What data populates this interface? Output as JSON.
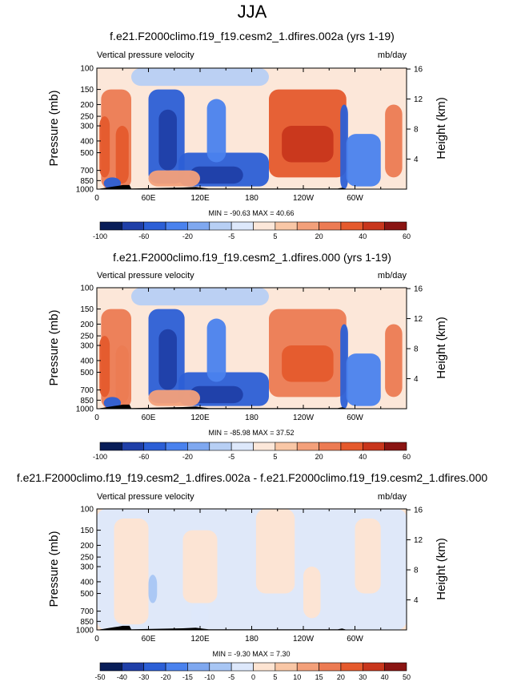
{
  "figure": {
    "main_title": "JJA",
    "colors": {
      "bwr": [
        "#081d58",
        "#1f3fa8",
        "#2c5fd6",
        "#4a82ee",
        "#7fa8f0",
        "#b7cff4",
        "#dde8fb",
        "#fce7d9",
        "#f9c7a6",
        "#f3a07a",
        "#ec7b53",
        "#e55a2d",
        "#c8361c",
        "#8a1412"
      ],
      "diff": [
        "#081d58",
        "#1f3fa8",
        "#2c5fd6",
        "#4a82ee",
        "#7fa8f0",
        "#a8c6f4",
        "#dde8fb",
        "#fde4d2",
        "#f9c7a6",
        "#f3a07a",
        "#ec7b53",
        "#e55a2d",
        "#c8361c",
        "#8a1412"
      ]
    }
  },
  "chart_data": [
    {
      "type": "heatmap",
      "title": "f.e21.F2000climo.f19_f19.cesm2_1.dfires.002a (yrs 1-19)",
      "left_string": "Vertical pressure velocity",
      "right_string": "mb/day",
      "ylabel": "Pressure (mb)",
      "ylabel_right": "Height (km)",
      "x_ticks": [
        "0",
        "60E",
        "120E",
        "180",
        "120W",
        "60W"
      ],
      "x_tick_values": [
        0,
        60,
        120,
        180,
        240,
        300
      ],
      "xlim": [
        0,
        360
      ],
      "y_ticks": [
        "100",
        "150",
        "200",
        "250",
        "300",
        "400",
        "500",
        "700",
        "850",
        "1000"
      ],
      "y_tick_values": [
        100,
        150,
        200,
        250,
        300,
        400,
        500,
        700,
        850,
        1000
      ],
      "ylim": [
        1000,
        100
      ],
      "y_scale": "log",
      "height_ticks": [
        "16",
        "12",
        "8",
        "4"
      ],
      "height_tick_values": [
        16,
        12,
        8,
        4
      ],
      "min_max": "MIN = -90.63  MAX = 40.66",
      "colorbar_labels": [
        "-100",
        "-60",
        "-20",
        "-5",
        "5",
        "20",
        "40",
        "60"
      ],
      "colorbar_levels": [
        -100,
        -80,
        -60,
        -40,
        -20,
        -10,
        -5,
        0,
        5,
        10,
        20,
        30,
        40,
        50,
        60
      ],
      "palette": "bwr",
      "features": [
        {
          "x": [
            5,
            40
          ],
          "p": [
            150,
            1000
          ],
          "v": 25
        },
        {
          "x": [
            3,
            15
          ],
          "p": [
            250,
            800
          ],
          "v": 35
        },
        {
          "x": [
            22,
            37
          ],
          "p": [
            300,
            900
          ],
          "v": 30
        },
        {
          "x": [
            8,
            28
          ],
          "p": [
            800,
            1000
          ],
          "v": -50
        },
        {
          "x": [
            60,
            102
          ],
          "p": [
            150,
            900
          ],
          "v": -45
        },
        {
          "x": [
            72,
            93
          ],
          "p": [
            220,
            700
          ],
          "v": -80
        },
        {
          "x": [
            95,
            200
          ],
          "p": [
            500,
            950
          ],
          "v": -45
        },
        {
          "x": [
            108,
            170
          ],
          "p": [
            650,
            900
          ],
          "v": -70
        },
        {
          "x": [
            128,
            150
          ],
          "p": [
            180,
            600
          ],
          "v": -40
        },
        {
          "x": [
            200,
            290
          ],
          "p": [
            150,
            800
          ],
          "v": 30
        },
        {
          "x": [
            215,
            275
          ],
          "p": [
            300,
            600
          ],
          "v": 40
        },
        {
          "x": [
            283,
            292
          ],
          "p": [
            200,
            1000
          ],
          "v": -55
        },
        {
          "x": [
            290,
            330
          ],
          "p": [
            350,
            950
          ],
          "v": -40
        },
        {
          "x": [
            335,
            355
          ],
          "p": [
            200,
            800
          ],
          "v": 25
        },
        {
          "x": [
            40,
            200
          ],
          "p": [
            100,
            140
          ],
          "v": -6
        },
        {
          "x": [
            60,
            120
          ],
          "p": [
            700,
            950
          ],
          "v": 15
        }
      ],
      "terrain": [
        [
          12,
          970
        ],
        [
          20,
          950
        ],
        [
          25,
          940
        ],
        [
          30,
          925
        ],
        [
          38,
          925
        ],
        [
          40,
          990
        ],
        [
          100,
          970
        ],
        [
          115,
          960
        ],
        [
          130,
          990
        ],
        [
          280,
          990
        ],
        [
          285,
          975
        ],
        [
          290,
          995
        ]
      ]
    },
    {
      "type": "heatmap",
      "title": "f.e21.F2000climo.f19_f19.cesm2_1.dfires.000 (yrs 1-19)",
      "left_string": "Vertical pressure velocity",
      "right_string": "mb/day",
      "ylabel": "Pressure (mb)",
      "ylabel_right": "Height (km)",
      "x_ticks": [
        "0",
        "60E",
        "120E",
        "180",
        "120W",
        "60W"
      ],
      "x_tick_values": [
        0,
        60,
        120,
        180,
        240,
        300
      ],
      "xlim": [
        0,
        360
      ],
      "y_ticks": [
        "100",
        "150",
        "200",
        "250",
        "300",
        "400",
        "500",
        "700",
        "850",
        "1000"
      ],
      "y_tick_values": [
        100,
        150,
        200,
        250,
        300,
        400,
        500,
        700,
        850,
        1000
      ],
      "ylim": [
        1000,
        100
      ],
      "y_scale": "log",
      "height_ticks": [
        "16",
        "12",
        "8",
        "4"
      ],
      "height_tick_values": [
        16,
        12,
        8,
        4
      ],
      "min_max": "MIN = -85.98  MAX = 37.52",
      "colorbar_labels": [
        "-100",
        "-60",
        "-20",
        "-5",
        "5",
        "20",
        "40",
        "60"
      ],
      "colorbar_levels": [
        -100,
        -80,
        -60,
        -40,
        -20,
        -10,
        -5,
        0,
        5,
        10,
        20,
        30,
        40,
        50,
        60
      ],
      "palette": "bwr",
      "features": [
        {
          "x": [
            5,
            40
          ],
          "p": [
            150,
            1000
          ],
          "v": 25
        },
        {
          "x": [
            3,
            15
          ],
          "p": [
            250,
            800
          ],
          "v": 33
        },
        {
          "x": [
            22,
            37
          ],
          "p": [
            300,
            900
          ],
          "v": 28
        },
        {
          "x": [
            8,
            28
          ],
          "p": [
            800,
            1000
          ],
          "v": -48
        },
        {
          "x": [
            60,
            102
          ],
          "p": [
            150,
            900
          ],
          "v": -43
        },
        {
          "x": [
            72,
            93
          ],
          "p": [
            220,
            700
          ],
          "v": -78
        },
        {
          "x": [
            95,
            200
          ],
          "p": [
            500,
            950
          ],
          "v": -43
        },
        {
          "x": [
            108,
            170
          ],
          "p": [
            650,
            900
          ],
          "v": -68
        },
        {
          "x": [
            128,
            150
          ],
          "p": [
            180,
            600
          ],
          "v": -38
        },
        {
          "x": [
            200,
            290
          ],
          "p": [
            150,
            800
          ],
          "v": 29
        },
        {
          "x": [
            215,
            275
          ],
          "p": [
            300,
            600
          ],
          "v": 37
        },
        {
          "x": [
            283,
            292
          ],
          "p": [
            200,
            1000
          ],
          "v": -52
        },
        {
          "x": [
            290,
            330
          ],
          "p": [
            350,
            950
          ],
          "v": -38
        },
        {
          "x": [
            335,
            355
          ],
          "p": [
            200,
            800
          ],
          "v": 24
        },
        {
          "x": [
            40,
            200
          ],
          "p": [
            100,
            140
          ],
          "v": -6
        },
        {
          "x": [
            60,
            120
          ],
          "p": [
            700,
            950
          ],
          "v": 14
        }
      ],
      "terrain": [
        [
          12,
          970
        ],
        [
          20,
          950
        ],
        [
          25,
          940
        ],
        [
          30,
          925
        ],
        [
          38,
          925
        ],
        [
          40,
          990
        ],
        [
          100,
          970
        ],
        [
          115,
          960
        ],
        [
          130,
          990
        ],
        [
          280,
          990
        ],
        [
          285,
          975
        ],
        [
          290,
          995
        ]
      ]
    },
    {
      "type": "heatmap",
      "title": "f.e21.F2000climo.f19_f19.cesm2_1.dfires.002a - f.e21.F2000climo.f19_f19.cesm2_1.dfires.000",
      "left_string": "Vertical pressure velocity",
      "right_string": "mb/day",
      "ylabel": "Pressure (mb)",
      "ylabel_right": "Height (km)",
      "x_ticks": [
        "0",
        "60E",
        "120E",
        "180",
        "120W",
        "60W"
      ],
      "x_tick_values": [
        0,
        60,
        120,
        180,
        240,
        300
      ],
      "xlim": [
        0,
        360
      ],
      "y_ticks": [
        "100",
        "150",
        "200",
        "250",
        "300",
        "400",
        "500",
        "700",
        "850",
        "1000"
      ],
      "y_tick_values": [
        100,
        150,
        200,
        250,
        300,
        400,
        500,
        700,
        850,
        1000
      ],
      "ylim": [
        1000,
        100
      ],
      "y_scale": "log",
      "height_ticks": [
        "16",
        "12",
        "8",
        "4"
      ],
      "height_tick_values": [
        16,
        12,
        8,
        4
      ],
      "min_max": "MIN = -9.30  MAX = 7.30",
      "colorbar_labels": [
        "-50",
        "-40",
        "-30",
        "-20",
        "-15",
        "-10",
        "-5",
        "0",
        "5",
        "10",
        "15",
        "20",
        "30",
        "40",
        "50"
      ],
      "colorbar_levels": [
        -50,
        -40,
        -30,
        -20,
        -15,
        -10,
        -5,
        0,
        5,
        10,
        15,
        20,
        30,
        40,
        50
      ],
      "palette": "diff",
      "features": [
        {
          "x": [
            0,
            360
          ],
          "p": [
            100,
            1000
          ],
          "v": -2
        },
        {
          "x": [
            20,
            60
          ],
          "p": [
            120,
            900
          ],
          "v": 3
        },
        {
          "x": [
            100,
            140
          ],
          "p": [
            150,
            600
          ],
          "v": 2
        },
        {
          "x": [
            185,
            230
          ],
          "p": [
            100,
            500
          ],
          "v": 2
        },
        {
          "x": [
            240,
            260
          ],
          "p": [
            300,
            800
          ],
          "v": 3
        },
        {
          "x": [
            300,
            330
          ],
          "p": [
            120,
            500
          ],
          "v": 2
        },
        {
          "x": [
            60,
            70
          ],
          "p": [
            350,
            600
          ],
          "v": -6
        },
        {
          "x": [
            110,
            130
          ],
          "p": [
            600,
            950
          ],
          "v": -3
        }
      ],
      "terrain": [
        [
          12,
          970
        ],
        [
          20,
          950
        ],
        [
          25,
          940
        ],
        [
          30,
          925
        ],
        [
          38,
          925
        ],
        [
          40,
          990
        ],
        [
          100,
          970
        ],
        [
          115,
          960
        ],
        [
          130,
          990
        ],
        [
          280,
          990
        ],
        [
          285,
          975
        ],
        [
          290,
          995
        ]
      ]
    }
  ]
}
